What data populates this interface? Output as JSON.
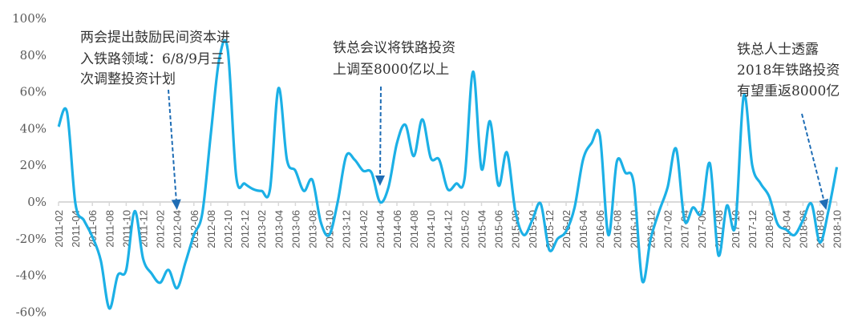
{
  "chart_data": {
    "type": "line",
    "title": "",
    "xlabel": "",
    "ylabel": "",
    "ylim": [
      -60,
      100
    ],
    "yticks": [
      "100%",
      "80%",
      "60%",
      "40%",
      "20%",
      "0%",
      "-20%",
      "-40%",
      "-60%"
    ],
    "grid": false,
    "x": [
      "2011-02",
      "2011-03",
      "2011-04",
      "2011-05",
      "2011-06",
      "2011-07",
      "2011-08",
      "2011-09",
      "2011-10",
      "2011-11",
      "2011-12",
      "2012-01",
      "2012-02",
      "2012-03",
      "2012-04",
      "2012-05",
      "2012-06",
      "2012-07",
      "2012-08",
      "2012-09",
      "2012-10",
      "2012-11",
      "2012-12",
      "2013-01",
      "2013-02",
      "2013-03",
      "2013-04",
      "2013-05",
      "2013-06",
      "2013-07",
      "2013-08",
      "2013-09",
      "2013-10",
      "2013-11",
      "2013-12",
      "2014-01",
      "2014-02",
      "2014-03",
      "2014-04",
      "2014-05",
      "2014-06",
      "2014-07",
      "2014-08",
      "2014-09",
      "2014-10",
      "2014-11",
      "2014-12",
      "2015-01",
      "2015-02",
      "2015-03",
      "2015-04",
      "2015-05",
      "2015-06",
      "2015-07",
      "2015-08",
      "2015-09",
      "2015-10",
      "2015-11",
      "2015-12",
      "2016-01",
      "2016-02",
      "2016-03",
      "2016-04",
      "2016-05",
      "2016-06",
      "2016-07",
      "2016-08",
      "2016-09",
      "2016-10",
      "2016-11",
      "2016-12",
      "2017-01",
      "2017-02",
      "2017-03",
      "2017-04",
      "2017-05",
      "2017-06",
      "2017-07",
      "2017-08",
      "2017-09",
      "2017-10",
      "2017-11",
      "2017-12",
      "2018-01",
      "2018-02",
      "2018-03",
      "2018-04",
      "2018-05",
      "2018-06",
      "2018-07",
      "2018-08",
      "2018-09",
      "2018-10"
    ],
    "xticks": [
      "2011-02",
      "2011-04",
      "2011-06",
      "2011-08",
      "2011-10",
      "2011-12",
      "2012-02",
      "2012-04",
      "2012-06",
      "2012-08",
      "2012-10",
      "2012-12",
      "2013-02",
      "2013-04",
      "2013-06",
      "2013-08",
      "2013-10",
      "2013-12",
      "2014-02",
      "2014-04",
      "2014-06",
      "2014-08",
      "2014-10",
      "2014-12",
      "2015-02",
      "2015-04",
      "2015-06",
      "2015-08",
      "2015-10",
      "2015-12",
      "2016-02",
      "2016-04",
      "2016-06",
      "2016-08",
      "2016-10",
      "2016-12",
      "2017-02",
      "2017-04",
      "2017-06",
      "2017-08",
      "2017-10",
      "2017-12",
      "2018-02",
      "2018-04",
      "2018-06",
      "2018-08",
      "2018-10"
    ],
    "series": [
      {
        "values": [
          41,
          49,
          -1,
          -10,
          -19,
          -32,
          -58,
          -40,
          -37,
          -5,
          -31,
          -39,
          -44,
          -37,
          -47,
          -33,
          -18,
          -6,
          37,
          78,
          83,
          14,
          10,
          7,
          6,
          7,
          62,
          23,
          17,
          6,
          12,
          -11,
          -18,
          0,
          25,
          23,
          17,
          16,
          0,
          8,
          32,
          42,
          25,
          45,
          24,
          23,
          7,
          10,
          13,
          71,
          18,
          44,
          9,
          27,
          -5,
          -18,
          -10,
          -1,
          -26,
          -20,
          -16,
          -3,
          23,
          32,
          36,
          -18,
          22,
          16,
          10,
          -43,
          -20,
          -5,
          8,
          29,
          -10,
          -3,
          -6,
          21,
          -29,
          -2,
          -13,
          58,
          20,
          10,
          3,
          -12,
          -15,
          -18,
          -10,
          -1,
          -22,
          -5,
          19
        ],
        "color": "#1cb0e6"
      }
    ],
    "annotations": [
      {
        "lines": [
          "两会提出鼓励民间资本进",
          "入铁路领域：6/8/9月三",
          "次调整投资计划"
        ],
        "arrow_to": "2012-04"
      },
      {
        "lines": [
          "铁总会议将铁路投资",
          "上调至8000亿以上"
        ],
        "arrow_to": "2014-04"
      },
      {
        "lines": [
          "铁总人士透露",
          "2018年铁路投资",
          "有望重返8000亿"
        ],
        "arrow_to": "2018-08"
      }
    ],
    "arrow_color": "#1f6db5",
    "axis_color": "#d9d9d9"
  }
}
